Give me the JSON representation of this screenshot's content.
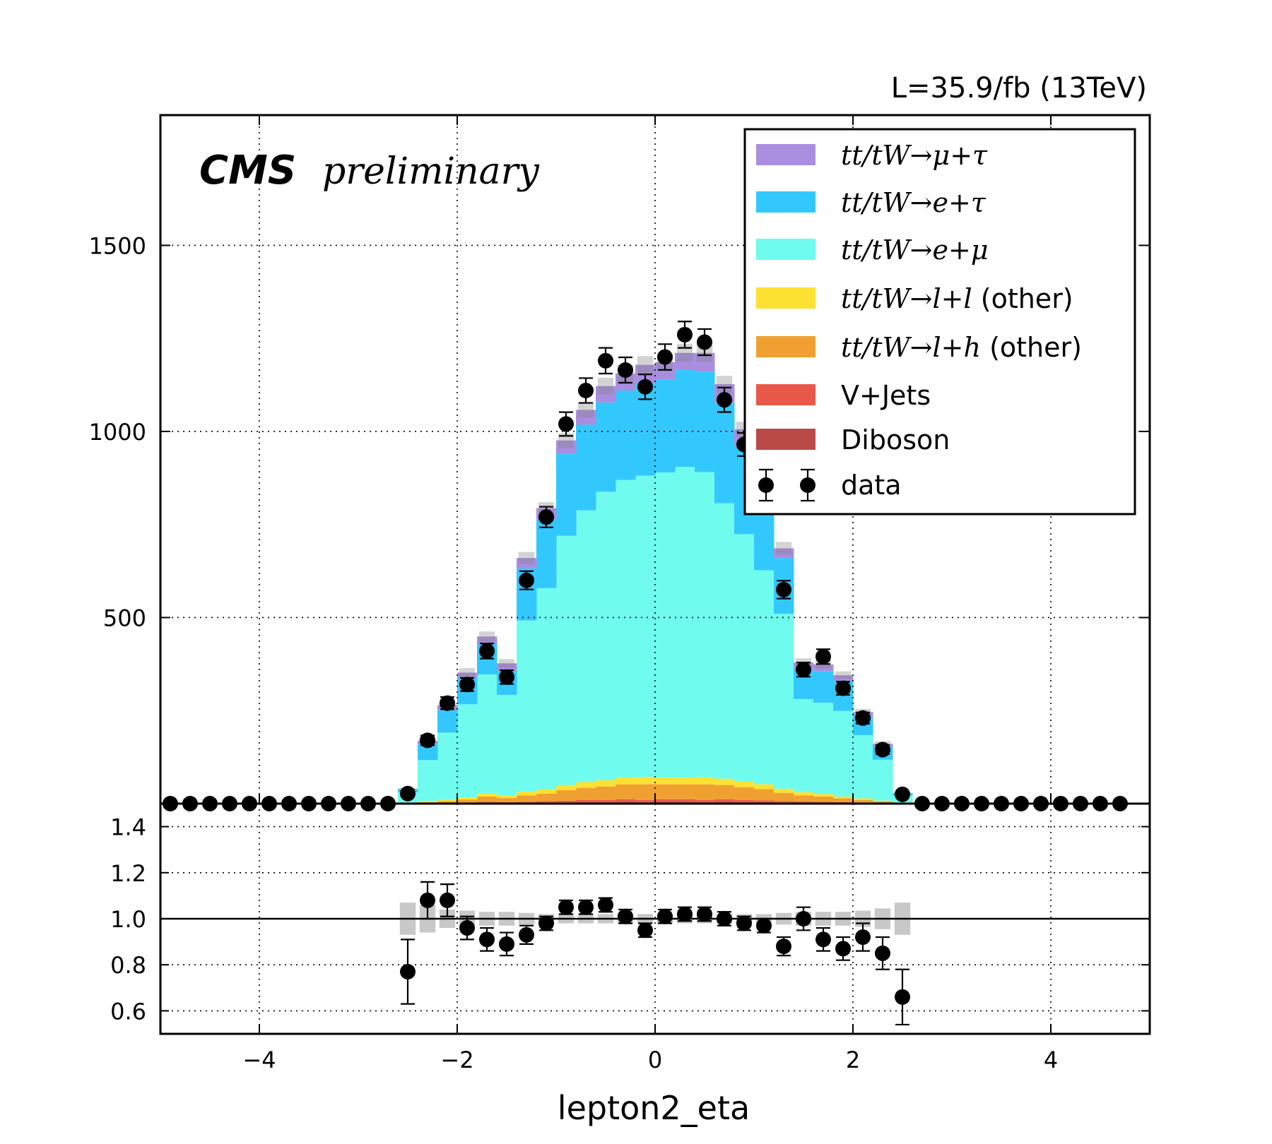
{
  "chart_data": {
    "type": "bar",
    "luminosity_label": "L=35.9/fb (13TeV)",
    "cms_label": "CMS",
    "preliminary_label": "preliminary",
    "xlabel": "lepton2_eta",
    "xlim": [
      -5,
      5
    ],
    "ylim": [
      0,
      1850
    ],
    "ratio_ylim": [
      0.5,
      1.5
    ],
    "grid": true,
    "legend_position": "top-right",
    "x_ticks": [
      "−4",
      "−2",
      "0",
      "2",
      "4"
    ],
    "x_tick_values": [
      -4,
      -2,
      0,
      2,
      4
    ],
    "y_ticks": [
      "500",
      "1000",
      "1500"
    ],
    "y_tick_values": [
      500,
      1000,
      1500
    ],
    "ratio_ticks": [
      "0.6",
      "0.8",
      "1.0",
      "1.2",
      "1.4"
    ],
    "ratio_tick_values": [
      0.6,
      0.8,
      1.0,
      1.2,
      1.4
    ],
    "bin_edges": [
      -2.6,
      -2.4,
      -2.2,
      -2.0,
      -1.8,
      -1.6,
      -1.4,
      -1.2,
      -1.0,
      -0.8,
      -0.6,
      -0.4,
      -0.2,
      0.0,
      0.2,
      0.4,
      0.6,
      0.8,
      1.0,
      1.2,
      1.4,
      1.6,
      1.8,
      2.0,
      2.2,
      2.4,
      2.6
    ],
    "series": [
      {
        "name": "Diboson",
        "color": "#b94a48",
        "values": [
          0,
          0,
          1,
          1,
          2,
          2,
          2,
          3,
          3,
          4,
          4,
          5,
          4,
          5,
          5,
          4,
          5,
          4,
          4,
          3,
          3,
          2,
          2,
          1,
          1,
          0
        ]
      },
      {
        "name": "V+Jets",
        "color": "#e8594a",
        "values": [
          0,
          1,
          1,
          2,
          3,
          2,
          3,
          4,
          5,
          6,
          6,
          7,
          6,
          7,
          7,
          6,
          7,
          6,
          5,
          4,
          3,
          3,
          2,
          2,
          1,
          0
        ]
      },
      {
        "name": "tt/tW→l+h (other)",
        "color": "#f0a030",
        "values": [
          1,
          3,
          5,
          8,
          14,
          11,
          17,
          20,
          28,
          32,
          36,
          40,
          42,
          40,
          40,
          42,
          38,
          34,
          30,
          22,
          16,
          14,
          10,
          7,
          4,
          1
        ]
      },
      {
        "name": "tt/tW→l+l (other)",
        "color": "#fde133",
        "values": [
          1,
          3,
          4,
          6,
          8,
          7,
          10,
          12,
          14,
          16,
          17,
          18,
          19,
          18,
          18,
          19,
          17,
          15,
          13,
          11,
          9,
          7,
          5,
          4,
          2,
          1
        ]
      },
      {
        "name": "tt/tW→e+μ",
        "color": "#6ffcee",
        "values": [
          28,
          110,
          180,
          250,
          320,
          270,
          460,
          540,
          670,
          730,
          775,
          800,
          810,
          820,
          835,
          820,
          740,
          665,
          575,
          470,
          250,
          245,
          230,
          170,
          110,
          20
        ]
      },
      {
        "name": "tt/tW→e+τ",
        "color": "#33c8fd",
        "values": [
          8,
          42,
          60,
          70,
          82,
          65,
          140,
          185,
          220,
          230,
          240,
          240,
          250,
          250,
          260,
          270,
          270,
          240,
          240,
          150,
          80,
          85,
          80,
          50,
          35,
          5
        ]
      },
      {
        "name": "tt/tW→μ+τ",
        "color": "#a98ee0",
        "values": [
          2,
          10,
          14,
          15,
          20,
          20,
          28,
          30,
          36,
          40,
          44,
          46,
          48,
          46,
          46,
          50,
          50,
          42,
          38,
          26,
          18,
          18,
          16,
          12,
          8,
          2
        ]
      }
    ],
    "data": {
      "name": "data",
      "values": [
        27,
        170,
        270,
        320,
        410,
        340,
        600,
        770,
        1020,
        1110,
        1190,
        1165,
        1120,
        1200,
        1260,
        1240,
        1085,
        965,
        880,
        575,
        360,
        395,
        310,
        230,
        145,
        25
      ],
      "zero_points_x": [
        -4.9,
        -4.7,
        -4.5,
        -4.3,
        -4.1,
        -3.9,
        -3.7,
        -3.5,
        -3.3,
        -3.1,
        -2.9,
        -2.7,
        2.7,
        2.9,
        3.1,
        3.3,
        3.5,
        3.7,
        3.9,
        4.1,
        4.3,
        4.5,
        4.7
      ]
    },
    "ratio": {
      "values": [
        0.77,
        1.08,
        1.08,
        0.96,
        0.91,
        0.89,
        0.93,
        0.98,
        1.05,
        1.05,
        1.06,
        1.01,
        0.95,
        1.01,
        1.02,
        1.02,
        1.0,
        0.98,
        0.97,
        0.88,
        1.0,
        0.91,
        0.87,
        0.92,
        0.85,
        0.66
      ],
      "errors": [
        0.14,
        0.08,
        0.07,
        0.05,
        0.05,
        0.05,
        0.04,
        0.03,
        0.03,
        0.03,
        0.03,
        0.03,
        0.03,
        0.03,
        0.03,
        0.03,
        0.03,
        0.03,
        0.03,
        0.04,
        0.05,
        0.05,
        0.05,
        0.06,
        0.07,
        0.12
      ],
      "mc_uncertainty": [
        0.07,
        0.06,
        0.04,
        0.035,
        0.03,
        0.03,
        0.025,
        0.02,
        0.02,
        0.02,
        0.02,
        0.02,
        0.02,
        0.02,
        0.02,
        0.02,
        0.02,
        0.02,
        0.02,
        0.025,
        0.03,
        0.03,
        0.03,
        0.035,
        0.045,
        0.07
      ]
    }
  },
  "legend": [
    {
      "math": "tt/tW→μ+τ",
      "suffix": "",
      "color": "#a98ee0",
      "marker": "patch"
    },
    {
      "math": "tt/tW→e+τ",
      "suffix": "",
      "color": "#33c8fd",
      "marker": "patch"
    },
    {
      "math": "tt/tW→e+μ",
      "suffix": "",
      "color": "#6ffcee",
      "marker": "patch"
    },
    {
      "math": "tt/tW→l+l",
      "suffix": " (other)",
      "color": "#fde133",
      "marker": "patch"
    },
    {
      "math": "tt/tW→l+h",
      "suffix": " (other)",
      "color": "#f0a030",
      "marker": "patch"
    },
    {
      "math": "",
      "suffix": "V+Jets",
      "color": "#e8594a",
      "marker": "patch"
    },
    {
      "math": "",
      "suffix": "Diboson",
      "color": "#b94a48",
      "marker": "patch"
    },
    {
      "math": "",
      "suffix": "data",
      "color": "#000000",
      "marker": "point"
    }
  ]
}
